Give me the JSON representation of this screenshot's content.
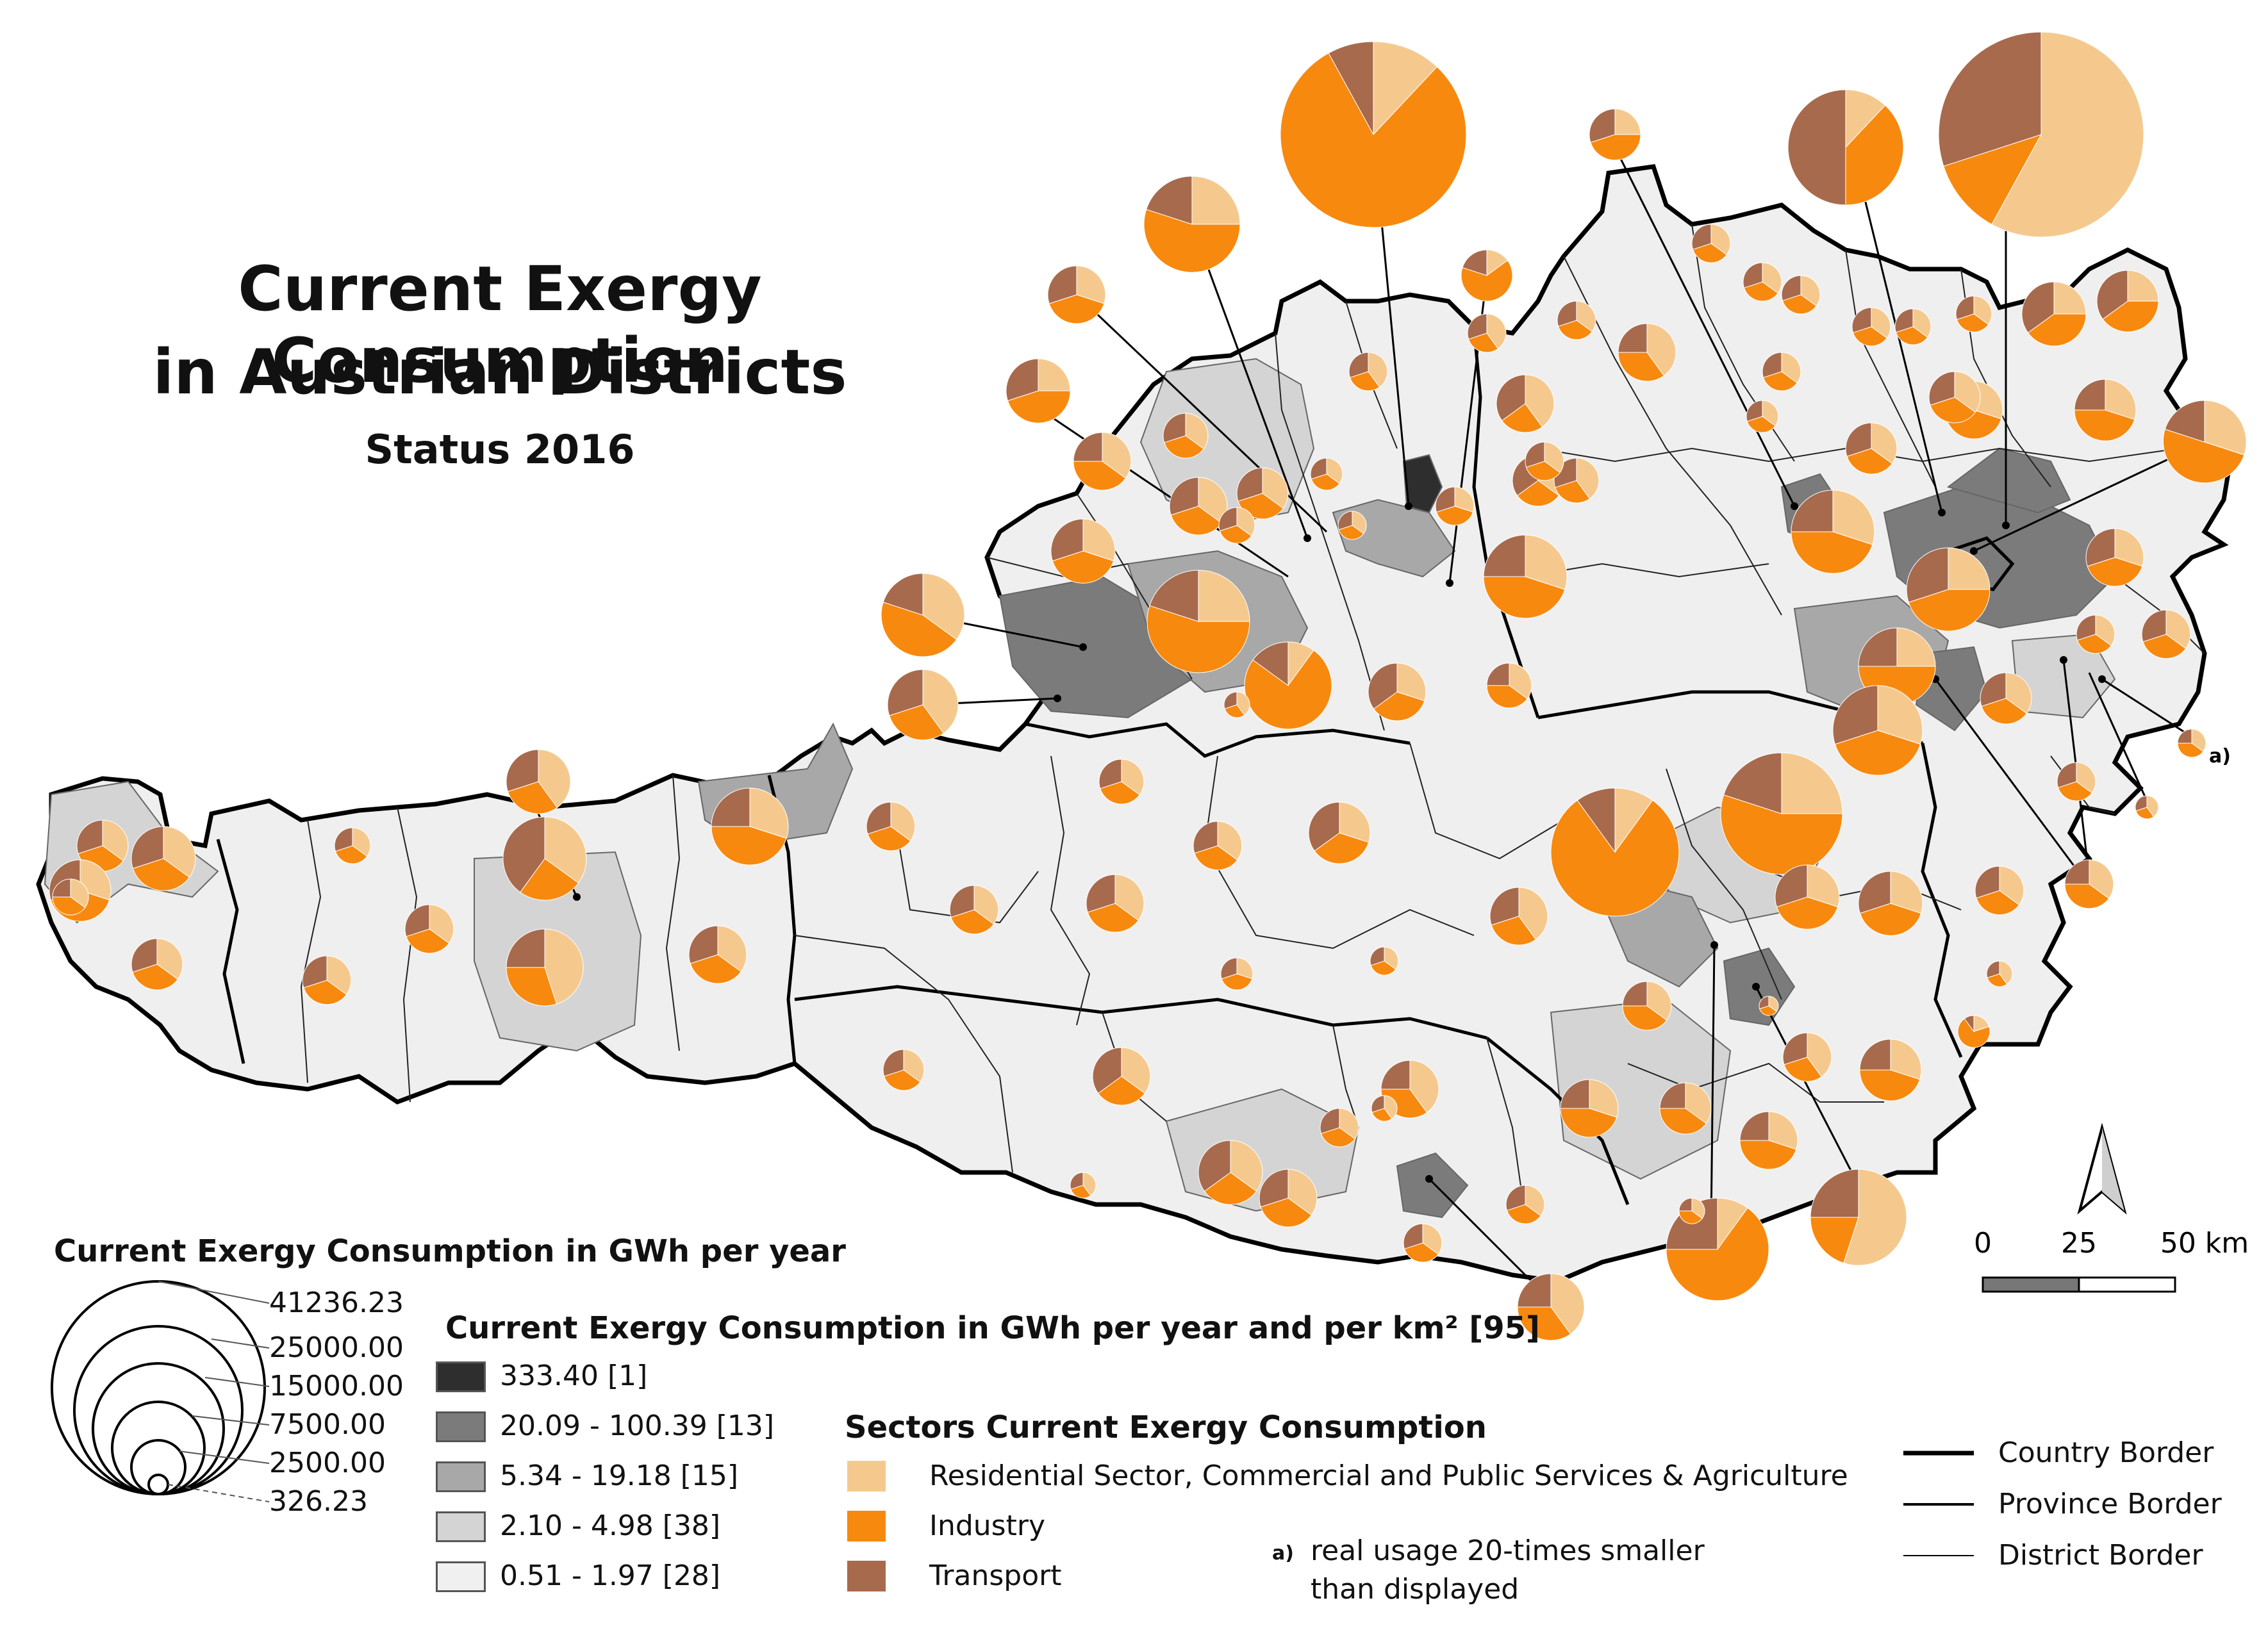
{
  "title": {
    "line1": "Current Exergy Consumption",
    "line2": "in Austrian Districts",
    "status": "Status 2016"
  },
  "colors": {
    "residential": "#F5C98E",
    "industry": "#F7890F",
    "transport": "#A86A4C",
    "class1": "#2E2E2E",
    "class2": "#7B7B7B",
    "class3": "#A8A8A8",
    "class4": "#D4D4D4",
    "class5": "#F0F0F0"
  },
  "size_legend": {
    "heading": "Current Exergy Consumption in GWh per year",
    "values": [
      "41236.23",
      "25000.00",
      "15000.00",
      "7500.00",
      "2500.00",
      "326.23"
    ]
  },
  "density_legend": {
    "heading": "Current Exergy Consumption in GWh per year and per km² [95]",
    "classes": [
      {
        "label": "333.40 [1]",
        "color": "#2E2E2E"
      },
      {
        "label": "20.09 - 100.39 [13]",
        "color": "#7B7B7B"
      },
      {
        "label": "5.34 - 19.18 [15]",
        "color": "#A8A8A8"
      },
      {
        "label": "2.10 - 4.98 [38]",
        "color": "#D4D4D4"
      },
      {
        "label": "0.51 - 1.97 [28]",
        "color": "#F0F0F0"
      }
    ]
  },
  "sectors_legend": {
    "heading": "Sectors Current Exergy Consumption",
    "items": [
      {
        "label": "Residential Sector, Commercial and Public Services & Agriculture",
        "color": "#F5C98E"
      },
      {
        "label": "Industry",
        "color": "#F7890F"
      },
      {
        "label": "Transport",
        "color": "#A86A4C"
      }
    ]
  },
  "note": {
    "marker": "a)",
    "line1": "real  usage  20-times  smaller",
    "line2": "than displayed"
  },
  "borders_legend": [
    "Country Border",
    "Province Border",
    "District Border"
  ],
  "scale_bar": {
    "labels": [
      "0",
      "25",
      "50 km"
    ]
  }
}
